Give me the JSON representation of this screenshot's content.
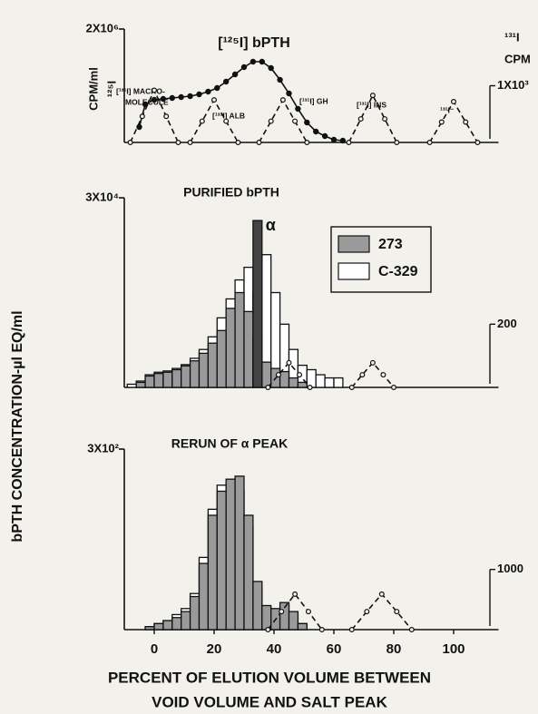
{
  "ylabel": "bPTH CONCENTRATION-µl EQ/ml",
  "chart_data": [
    {
      "type": "line",
      "title": "[¹²⁵I] bPTH",
      "ylabel": [
        "CPM/ml",
        "¹²⁵I"
      ],
      "y2label": [
        "¹³¹I",
        "CPM"
      ],
      "annotations": [
        "[¹³¹I] MACRO-",
        "MOLECULE",
        "[¹³¹I] ALB",
        "[¹³¹I] GH",
        "[¹³¹I] INS",
        "¹³¹I⁻"
      ],
      "xlim": [
        -10,
        115
      ],
      "ylim": [
        0,
        2000000
      ],
      "yticks": [
        {
          "value": 2000000,
          "label": "2X10⁶"
        }
      ],
      "y2lim": [
        0,
        2000
      ],
      "y2ticks": [
        {
          "value": 1000,
          "label": "1X10³"
        }
      ],
      "series": [
        {
          "color": "#111111",
          "marker": "filled",
          "x": [
            -5,
            -3,
            0,
            3,
            6,
            9,
            12,
            15,
            18,
            21,
            24,
            27,
            30,
            33,
            36,
            39,
            42,
            45,
            48,
            51,
            54,
            57,
            60,
            63
          ],
          "values": [
            272000,
            672000,
            752000,
            768000,
            784000,
            800000,
            816000,
            848000,
            896000,
            960000,
            1072000,
            1200000,
            1328000,
            1424000,
            1424000,
            1312000,
            1104000,
            864000,
            592000,
            352000,
            192000,
            112000,
            48000,
            32000
          ]
        },
        {
          "color": "#111111",
          "marker": "open",
          "dashed": true,
          "axis": "y2",
          "x": [
            -8,
            -4,
            0,
            4,
            8,
            null,
            12,
            16,
            20,
            24,
            28,
            null,
            35,
            39,
            43,
            47,
            51,
            null,
            65,
            69,
            73,
            77,
            81,
            null,
            92,
            96,
            100,
            104,
            108
          ],
          "values": [
            0,
            460,
            920,
            460,
            0,
            null,
            0,
            375,
            750,
            375,
            0,
            null,
            0,
            375,
            750,
            375,
            0,
            null,
            0,
            415,
            830,
            415,
            0,
            null,
            0,
            360,
            720,
            360,
            0
          ]
        }
      ]
    },
    {
      "type": "histogram",
      "title": "PURIFIED bPTH",
      "legend": "upper right",
      "xlim": [
        -10,
        115
      ],
      "ylim": [
        0,
        30000
      ],
      "yticks": [
        {
          "value": 30000,
          "label": "3X10⁴"
        }
      ],
      "y2lim": [
        0,
        600
      ],
      "y2ticks": [
        200
      ],
      "alpha_peak": {
        "label": "α",
        "color": "#444444",
        "bins": [
          33,
          36
        ],
        "value": 26400
      },
      "series": [
        {
          "name": "C-329",
          "color": "#ffffff",
          "bins": [
            -9,
            -6,
            -3,
            0,
            3,
            6,
            9,
            12,
            15,
            18,
            21,
            24,
            27,
            30,
            33,
            36,
            39,
            42,
            45,
            48,
            51,
            54,
            57,
            60,
            63
          ],
          "values": [
            500,
            1000,
            2000,
            2400,
            2600,
            3000,
            3600,
            4600,
            6000,
            8000,
            11000,
            14000,
            17000,
            19000,
            15000,
            21000,
            15000,
            10000,
            6000,
            3500,
            2800,
            2000,
            1500,
            1500
          ]
        },
        {
          "name": "273",
          "color": "#9a9a9a",
          "bins": [
            -6,
            -3,
            0,
            3,
            6,
            9,
            12,
            15,
            18,
            21,
            24,
            27,
            30,
            33,
            36,
            39,
            42,
            45,
            48,
            51
          ],
          "values": [
            800,
            1800,
            2200,
            2400,
            2800,
            3400,
            4200,
            5400,
            7000,
            9000,
            12500,
            15000,
            12000,
            8000,
            4000,
            3000,
            2500,
            1500,
            800
          ]
        },
        {
          "color": "#111111",
          "marker": "open",
          "dashed": true,
          "axis": "y2",
          "x": [
            38,
            41.5,
            45,
            48.5,
            52,
            null,
            66,
            69.5,
            73,
            76.5,
            80
          ],
          "values": [
            0,
            40,
            78,
            40,
            0,
            null,
            0,
            40,
            78,
            40,
            0
          ]
        }
      ]
    },
    {
      "type": "histogram",
      "title": "RERUN OF α PEAK",
      "xlim": [
        -10,
        115
      ],
      "xticks": [
        0,
        20,
        40,
        60,
        80,
        100
      ],
      "xlabel": [
        "PERCENT OF ELUTION VOLUME BETWEEN",
        "VOID VOLUME AND SALT PEAK"
      ],
      "ylim": [
        0,
        300
      ],
      "yticks": [
        {
          "value": 300,
          "label": "3X10²"
        }
      ],
      "y2lim": [
        0,
        3000
      ],
      "y2ticks": [
        1000
      ],
      "series": [
        {
          "name": "C-329",
          "color": "#ffffff",
          "bins": [
            -3,
            0,
            3,
            6,
            9,
            12,
            15,
            18,
            21,
            24,
            27,
            30,
            33,
            36,
            39,
            42,
            45,
            48,
            51
          ],
          "values": [
            5,
            10,
            15,
            25,
            35,
            60,
            120,
            200,
            240,
            245,
            230,
            170,
            70,
            35,
            30,
            40,
            25,
            10
          ]
        },
        {
          "name": "273",
          "color": "#9a9a9a",
          "bins": [
            -3,
            0,
            3,
            6,
            9,
            12,
            15,
            18,
            21,
            24,
            27,
            30,
            33,
            36,
            39,
            42,
            45,
            48,
            51
          ],
          "values": [
            5,
            10,
            15,
            20,
            30,
            55,
            110,
            190,
            230,
            250,
            255,
            190,
            80,
            40,
            35,
            45,
            30,
            10
          ]
        },
        {
          "color": "#111111",
          "marker": "open",
          "dashed": true,
          "axis": "y2",
          "x": [
            38,
            42.5,
            47,
            51.5,
            56,
            null,
            66,
            71,
            76,
            81,
            86
          ],
          "values": [
            0,
            300,
            590,
            300,
            0,
            null,
            0,
            300,
            590,
            300,
            0
          ]
        }
      ]
    }
  ]
}
